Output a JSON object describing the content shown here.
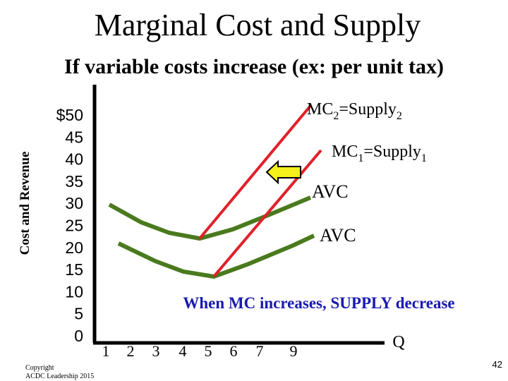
{
  "slide": {
    "title": "Marginal Cost and Supply",
    "subtitle": "If variable costs increase (ex: per unit tax)",
    "y_axis_label": "Cost and Revenue",
    "y_tick_labels": [
      "$50",
      "45",
      "40",
      "35",
      "30",
      "25",
      "20",
      "15",
      "10",
      "5",
      "0"
    ],
    "x_tick_labels": [
      "1",
      "2",
      "3",
      "4",
      "5",
      "6",
      "7",
      "9"
    ],
    "x_axis_label": "Q",
    "curve_labels": {
      "mc2": [
        "MC",
        "2",
        "=Supply",
        "2"
      ],
      "mc1": [
        "MC",
        "1",
        "=Supply",
        "1"
      ],
      "avc_upper": "AVC",
      "avc_lower": "AVC"
    },
    "annotation": "When MC increases, SUPPLY decrease",
    "copyright": [
      "Copyright",
      "ACDC Leadership 2015"
    ],
    "page_number": "42"
  }
}
